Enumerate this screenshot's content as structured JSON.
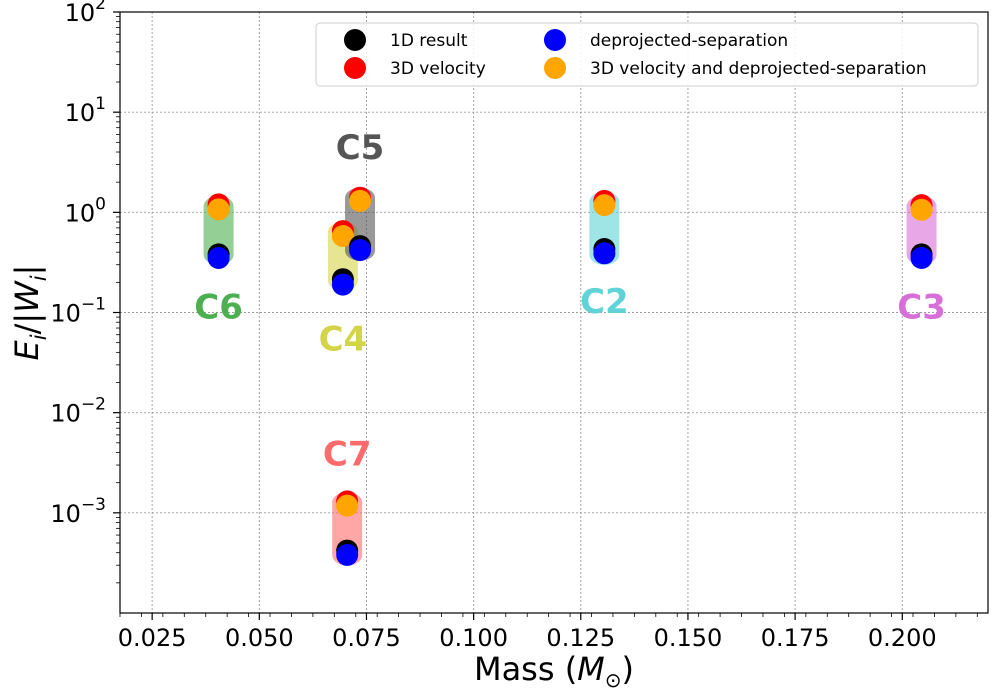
{
  "chart_data": {
    "type": "scatter",
    "xlabel": "Mass",
    "xlabel_unit": "M",
    "ylabel": "E",
    "ylabel_sub": "i",
    "yscale": "log",
    "xlim": [
      0.0175,
      0.22
    ],
    "ylim": [
      0.0001,
      100
    ],
    "grid": true,
    "x_ticks": [
      0.025,
      0.05,
      0.075,
      0.1,
      0.125,
      0.15,
      0.175,
      0.2
    ],
    "x_tick_labels": [
      "0.025",
      "0.050",
      "0.075",
      "0.100",
      "0.125",
      "0.150",
      "0.175",
      "0.200"
    ],
    "y_ticks": [
      0.001,
      0.01,
      0.1,
      1,
      10,
      100
    ],
    "y_tick_labels": [
      {
        "base": "10",
        "exp": "−3"
      },
      {
        "base": "10",
        "exp": "−2"
      },
      {
        "base": "10",
        "exp": "−1"
      },
      {
        "base": "10",
        "exp": "0"
      },
      {
        "base": "10",
        "exp": "1"
      },
      {
        "base": "10",
        "exp": "2"
      }
    ],
    "legend": {
      "location": "top-right",
      "entries": [
        {
          "label": "1D result",
          "color": "#000000"
        },
        {
          "label": "deprojected-separation",
          "color": "#0000ff"
        },
        {
          "label": "3D velocity",
          "color": "#ff0000"
        },
        {
          "label": "3D velocity and deprojected-separation",
          "color": "#ffa500"
        }
      ]
    },
    "series_order": [
      "1D result",
      "3D velocity",
      "deprojected-separation",
      "3D velocity and deprojected-separation"
    ],
    "clusters": [
      {
        "name": "C6",
        "x": 0.0405,
        "color": "#4caf50",
        "range": [
          0.3,
          1.45
        ],
        "label_y": 0.115,
        "points": {
          "1D result": 0.38,
          "3D velocity": 1.2,
          "deprojected-separation": 0.35,
          "3D velocity and deprojected-separation": 1.07
        }
      },
      {
        "name": "C4",
        "x": 0.0695,
        "color": "#d4d44a",
        "range": [
          0.165,
          0.8
        ],
        "label_y": 0.055,
        "points": {
          "1D result": 0.215,
          "3D velocity": 0.65,
          "deprojected-separation": 0.19,
          "3D velocity and deprojected-separation": 0.58
        }
      },
      {
        "name": "C5",
        "x": 0.0735,
        "color": "#555555",
        "range": [
          0.33,
          1.75
        ],
        "label_y": 4.5,
        "points": {
          "1D result": 0.46,
          "3D velocity": 1.4,
          "deprojected-separation": 0.42,
          "3D velocity and deprojected-separation": 1.3
        }
      },
      {
        "name": "C7",
        "x": 0.0705,
        "color": "#ff6b6b",
        "range": [
          0.0003,
          0.0016
        ],
        "label_y": 0.0039,
        "points": {
          "1D result": 0.00042,
          "3D velocity": 0.0013,
          "deprojected-separation": 0.00038,
          "3D velocity and deprojected-separation": 0.00118
        }
      },
      {
        "name": "C2",
        "x": 0.1305,
        "color": "#5fd3d6",
        "range": [
          0.3,
          1.6
        ],
        "label_y": 0.13,
        "points": {
          "1D result": 0.43,
          "3D velocity": 1.3,
          "deprojected-separation": 0.39,
          "3D velocity and deprojected-separation": 1.18
        }
      },
      {
        "name": "C3",
        "x": 0.2045,
        "color": "#d86ed8",
        "range": [
          0.3,
          1.45
        ],
        "label_y": 0.115,
        "points": {
          "1D result": 0.38,
          "3D velocity": 1.18,
          "deprojected-separation": 0.35,
          "3D velocity and deprojected-separation": 1.06
        }
      }
    ]
  }
}
